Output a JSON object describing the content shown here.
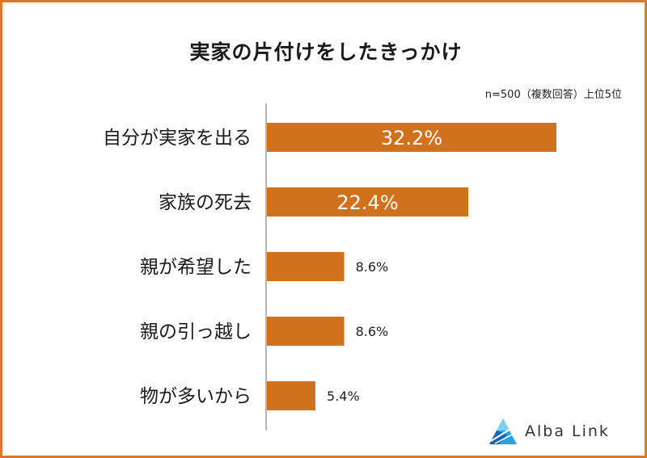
{
  "title": "実家の片付けをしたきっかけ",
  "note": "n=500（複数回答）上位5位",
  "brand": {
    "name": "Alba Link",
    "icon": "alba-link-logo-icon"
  },
  "colors": {
    "bar": "#d0711e",
    "border": "#d87a2a",
    "axis": "#b5b5b5"
  },
  "chart_data": {
    "type": "bar",
    "orientation": "horizontal",
    "title": "実家の片付けをしたきっかけ",
    "categories": [
      "自分が実家を出る",
      "家族の死去",
      "親が希望した",
      "親の引っ越し",
      "物が多いから"
    ],
    "values": [
      32.2,
      22.4,
      8.6,
      8.6,
      5.4
    ],
    "value_labels": [
      "32.2%",
      "22.4%",
      "8.6%",
      "8.6%",
      "5.4%"
    ],
    "unit": "%",
    "xlim": [
      0,
      40
    ],
    "grid": false,
    "legend": "none"
  }
}
